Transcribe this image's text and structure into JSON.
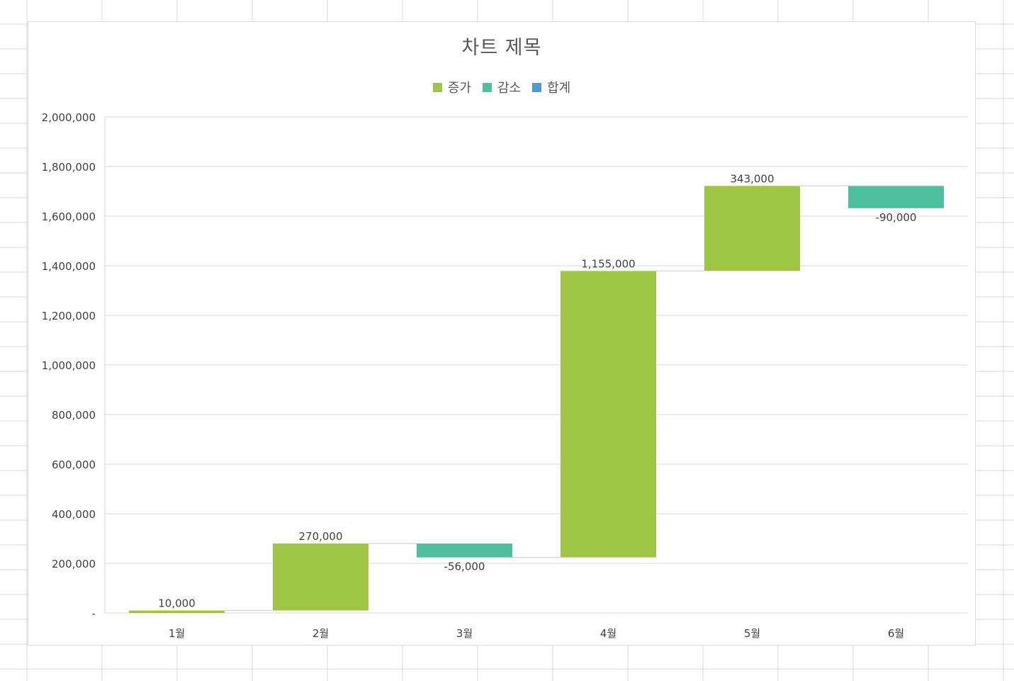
{
  "chart_data": {
    "type": "bar",
    "subtype": "waterfall",
    "title": "차트 제목",
    "categories": [
      "1월",
      "2월",
      "3월",
      "4월",
      "5월",
      "6월"
    ],
    "values": [
      10000,
      270000,
      -56000,
      1155000,
      343000,
      -90000
    ],
    "data_labels": [
      "10,000",
      "270,000",
      "-56,000",
      "1,155,000",
      "343,000",
      "-90,000"
    ],
    "legend": [
      {
        "name": "증가",
        "color": "#9fc544"
      },
      {
        "name": "감소",
        "color": "#4fbfa0"
      },
      {
        "name": "합계",
        "color": "#4a9dd2"
      }
    ],
    "legend_position": "top",
    "ylim": [
      0,
      2000000
    ],
    "yticks": [
      0,
      200000,
      400000,
      600000,
      800000,
      1000000,
      1200000,
      1400000,
      1600000,
      1800000,
      2000000
    ],
    "ytick_labels": [
      "-",
      "200,000",
      "400,000",
      "600,000",
      "800,000",
      "1,000,000",
      "1,200,000",
      "1,400,000",
      "1,600,000",
      "1,800,000",
      "2,000,000"
    ],
    "grid": true,
    "colors": {
      "increase": "#9fc544",
      "decrease": "#4fbfa0",
      "total": "#4a9dd2"
    }
  }
}
